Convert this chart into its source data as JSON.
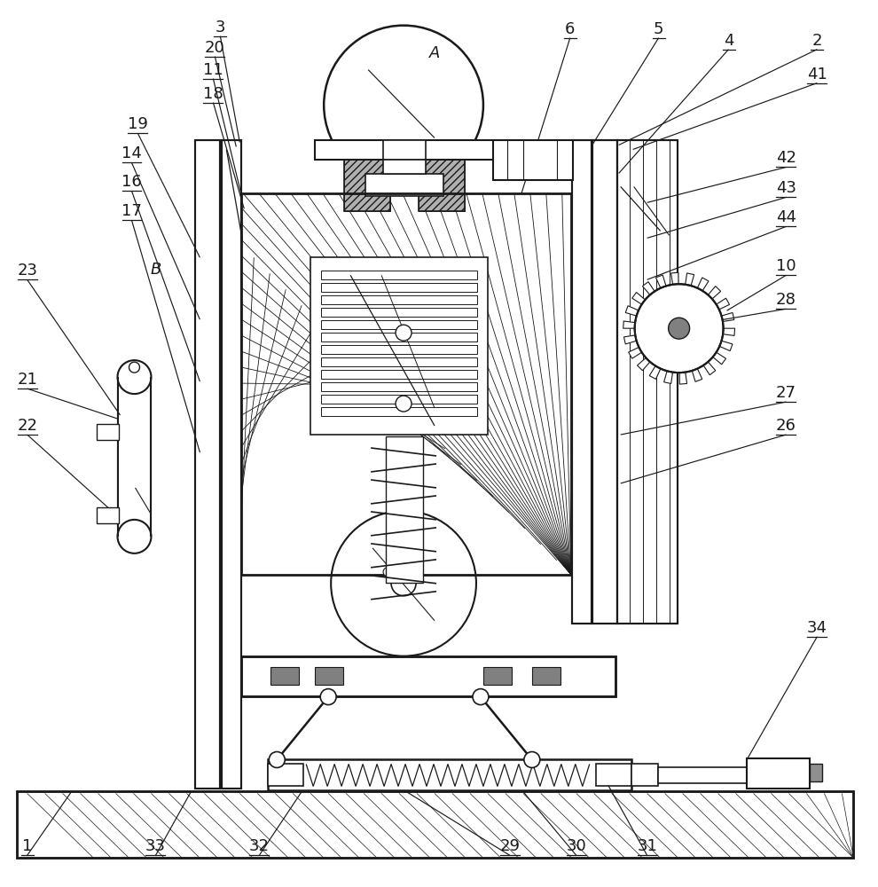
{
  "bg_color": "#ffffff",
  "line_color": "#1a1a1a",
  "figsize": [
    9.9,
    10.0
  ],
  "dpi": 100,
  "fs": 13
}
